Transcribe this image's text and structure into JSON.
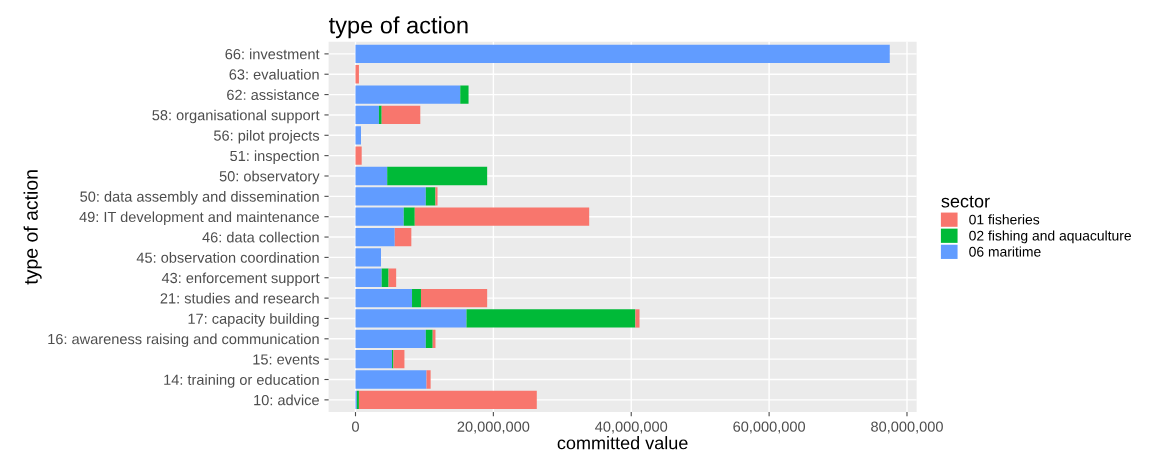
{
  "chart_data": {
    "type": "bar",
    "orientation": "horizontal",
    "stacked": true,
    "title": "type of action",
    "xlabel": "committed value",
    "ylabel": "type of action",
    "legend_title": "sector",
    "legend": "right",
    "grid": true,
    "categories": [
      "66: investment",
      "63: evaluation",
      "62: assistance",
      "58: organisational support",
      "56: pilot projects",
      "51: inspection",
      "50: observatory",
      "50: data assembly and dissemination",
      "49: IT development and maintenance",
      "46: data collection",
      "45: observation coordination",
      "43: enforcement support",
      "21: studies and research",
      "17: capacity building",
      "16: awareness raising and communication",
      "15: events",
      "14: training or education",
      "10: advice"
    ],
    "series": [
      {
        "name": "06 maritime",
        "color": "#619cff",
        "values": [
          77500000,
          0,
          15200000,
          3400000,
          800000,
          0,
          4600000,
          10200000,
          7000000,
          5700000,
          3700000,
          3800000,
          8200000,
          16100000,
          10200000,
          5300000,
          10300000,
          200000
        ]
      },
      {
        "name": "02 fishing and aquaculture",
        "color": "#00ba38",
        "values": [
          0,
          0,
          1200000,
          400000,
          0,
          0,
          14500000,
          1400000,
          1600000,
          0,
          0,
          1000000,
          1300000,
          24500000,
          1000000,
          200000,
          0,
          300000
        ]
      },
      {
        "name": "01 fisheries",
        "color": "#f8766d",
        "values": [
          0,
          500000,
          0,
          5600000,
          0,
          900000,
          0,
          300000,
          25300000,
          2400000,
          0,
          1100000,
          9600000,
          600000,
          400000,
          1600000,
          600000,
          25800000
        ]
      }
    ],
    "xlim": [
      -3900000,
      81400000
    ],
    "xticks": [
      0,
      {
        "value": 20000000,
        "label": "20,000,000"
      },
      {
        "value": 40000000,
        "label": "40,000,000"
      },
      {
        "value": 60000000,
        "label": "60,000,000"
      },
      {
        "value": 80000000,
        "label": "80,000,000"
      }
    ]
  }
}
